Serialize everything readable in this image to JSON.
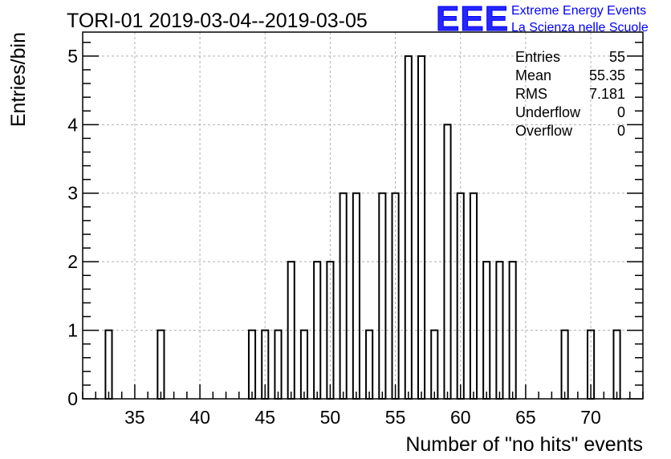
{
  "chart_data": {
    "type": "bar",
    "title": "TORI-01 2019-03-04--2019-03-05",
    "xlabel": "Number of \"no hits\" events",
    "ylabel": "Entries/bin",
    "xlim": [
      31,
      74
    ],
    "ylim": [
      0,
      5.35
    ],
    "xticks": [
      35,
      40,
      45,
      50,
      55,
      60,
      65,
      70
    ],
    "yticks": [
      0,
      1,
      2,
      3,
      4,
      5
    ],
    "bin_width": 0.5,
    "grid": true,
    "legend": "top-right stats box",
    "bins": [
      {
        "x": 33,
        "count": 1
      },
      {
        "x": 37,
        "count": 1
      },
      {
        "x": 44,
        "count": 1
      },
      {
        "x": 45,
        "count": 1
      },
      {
        "x": 46,
        "count": 1
      },
      {
        "x": 47,
        "count": 2
      },
      {
        "x": 48,
        "count": 1
      },
      {
        "x": 49,
        "count": 2
      },
      {
        "x": 50,
        "count": 2
      },
      {
        "x": 51,
        "count": 3
      },
      {
        "x": 52,
        "count": 3
      },
      {
        "x": 53,
        "count": 1
      },
      {
        "x": 54,
        "count": 3
      },
      {
        "x": 55,
        "count": 3
      },
      {
        "x": 56,
        "count": 5
      },
      {
        "x": 57,
        "count": 5
      },
      {
        "x": 58,
        "count": 1
      },
      {
        "x": 59,
        "count": 4
      },
      {
        "x": 60,
        "count": 3
      },
      {
        "x": 61,
        "count": 3
      },
      {
        "x": 62,
        "count": 2
      },
      {
        "x": 63,
        "count": 2
      },
      {
        "x": 64,
        "count": 2
      },
      {
        "x": 68,
        "count": 1
      },
      {
        "x": 70,
        "count": 1
      },
      {
        "x": 72,
        "count": 1
      }
    ],
    "stats": [
      {
        "label": "Entries",
        "value": "55"
      },
      {
        "label": "Mean",
        "value": "55.35"
      },
      {
        "label": "RMS",
        "value": "7.181"
      },
      {
        "label": "Underflow",
        "value": "0"
      },
      {
        "label": "Overflow",
        "value": "0"
      }
    ]
  },
  "logo": {
    "mark": "EEE",
    "line1": "Extreme Energy Events",
    "line2": "La Scienza nelle Scuole",
    "color": "#0000ff"
  }
}
